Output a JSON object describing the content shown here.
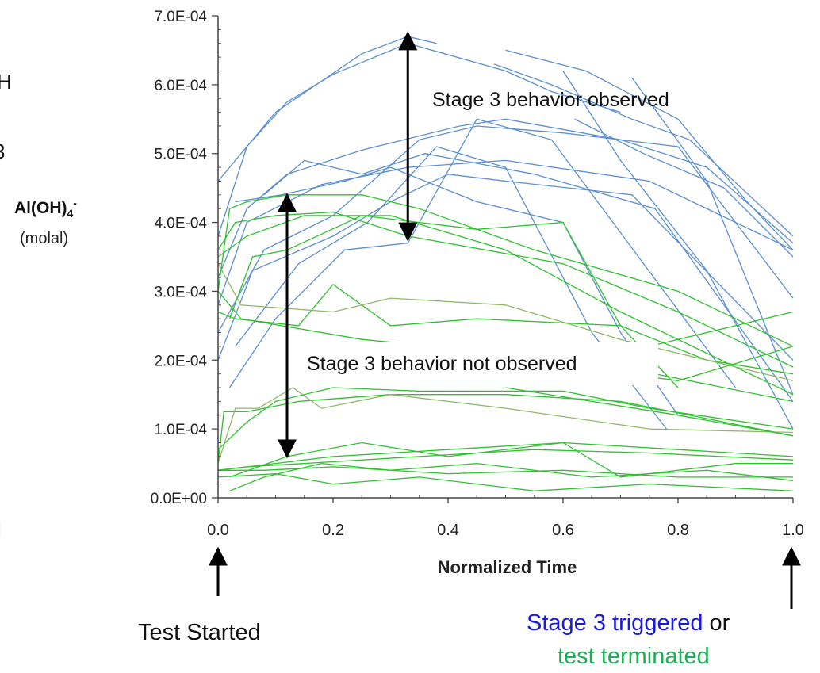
{
  "left_edge_fragments": [
    "H",
    "3",
    "l"
  ],
  "chart_data": {
    "type": "line",
    "xlabel": "Normalized Time",
    "ylabel": "Al(OH)4- (molal)",
    "ylabel_main": "Al(OH)",
    "ylabel_sub": "4",
    "ylabel_sup": "-",
    "ylabel_unit": "(molal)",
    "xlim": [
      0,
      1
    ],
    "ylim": [
      0,
      0.0007
    ],
    "x_ticks": [
      0.0,
      0.2,
      0.4,
      0.6,
      0.8,
      1.0
    ],
    "x_tick_labels": [
      "0.0",
      "0.2",
      "0.4",
      "0.6",
      "0.8",
      "1.0"
    ],
    "y_ticks": [
      0,
      0.0001,
      0.0002,
      0.0003,
      0.0004,
      0.0005,
      0.0006,
      0.0007
    ],
    "y_tick_labels": [
      "0.0E+00",
      "1.0E-04",
      "2.0E-04",
      "3.0E-04",
      "4.0E-04",
      "5.0E-04",
      "6.0E-04",
      "7.0E-04"
    ],
    "grid": false,
    "colors": {
      "stage3": "#5b8fd1",
      "no_stage3": "#2ec12e",
      "no_stage3_alt": "#8fb86a"
    },
    "series_blue": [
      [
        [
          0.0,
          0.00038
        ],
        [
          0.05,
          0.00051
        ],
        [
          0.12,
          0.000575
        ],
        [
          0.2,
          0.000615
        ],
        [
          0.33,
          0.00066
        ],
        [
          0.5,
          0.00062
        ],
        [
          0.58,
          0.00059
        ],
        [
          0.7,
          0.00056
        ]
      ],
      [
        [
          0.0,
          0.00046
        ],
        [
          0.1,
          0.00056
        ],
        [
          0.25,
          0.000645
        ],
        [
          0.33,
          0.00067
        ],
        [
          0.38,
          0.00066
        ]
      ],
      [
        [
          0.0,
          0.00032
        ],
        [
          0.05,
          0.00042
        ],
        [
          0.12,
          0.00047
        ],
        [
          0.25,
          0.000505
        ],
        [
          0.42,
          0.00054
        ],
        [
          0.5,
          0.00055
        ],
        [
          0.7,
          0.00052
        ],
        [
          0.85,
          0.00048
        ],
        [
          1.0,
          0.00037
        ]
      ],
      [
        [
          0.0,
          0.00028
        ],
        [
          0.05,
          0.0004
        ],
        [
          0.18,
          0.000455
        ],
        [
          0.33,
          0.00048
        ],
        [
          0.5,
          0.00049
        ],
        [
          0.75,
          0.00046
        ],
        [
          1.0,
          0.00036
        ]
      ],
      [
        [
          0.0,
          0.00024
        ],
        [
          0.08,
          0.00036
        ],
        [
          0.2,
          0.00041
        ],
        [
          0.35,
          0.00052
        ],
        [
          0.45,
          0.00054
        ],
        [
          0.6,
          0.00053
        ],
        [
          0.8,
          0.00051
        ],
        [
          1.0,
          0.00029
        ]
      ],
      [
        [
          0.0,
          0.0002
        ],
        [
          0.06,
          0.00033
        ],
        [
          0.2,
          0.00038
        ],
        [
          0.3,
          0.00043
        ],
        [
          0.4,
          0.00047
        ],
        [
          0.5,
          0.00046
        ],
        [
          0.72,
          0.00044
        ],
        [
          1.0,
          0.0002
        ]
      ],
      [
        [
          0.02,
          0.00016
        ],
        [
          0.1,
          0.00026
        ],
        [
          0.22,
          0.00036
        ],
        [
          0.33,
          0.00037
        ],
        [
          0.45,
          0.00055
        ],
        [
          0.58,
          0.00052
        ],
        [
          0.9,
          0.00016
        ]
      ],
      [
        [
          0.03,
          0.00022
        ],
        [
          0.14,
          0.00034
        ],
        [
          0.26,
          0.0004
        ],
        [
          0.38,
          0.00051
        ],
        [
          0.5,
          0.00048
        ],
        [
          0.65,
          0.00024
        ],
        [
          0.78,
          0.0001
        ]
      ],
      [
        [
          0.08,
          0.00044
        ],
        [
          0.15,
          0.00049
        ],
        [
          0.25,
          0.00047
        ],
        [
          0.36,
          0.0005
        ],
        [
          0.55,
          0.00047
        ],
        [
          0.76,
          0.00042
        ],
        [
          1.0,
          0.00014
        ]
      ],
      [
        [
          0.03,
          0.00043
        ],
        [
          0.11,
          0.00044
        ],
        [
          0.22,
          0.00046
        ],
        [
          0.3,
          0.00048
        ],
        [
          0.45,
          0.00043
        ],
        [
          0.6,
          0.0004
        ],
        [
          0.7,
          0.00024
        ],
        [
          0.8,
          0.00012
        ]
      ],
      [
        [
          0.48,
          0.00063
        ],
        [
          0.58,
          0.0006
        ],
        [
          0.72,
          0.00055
        ],
        [
          0.82,
          0.00052
        ],
        [
          1.0,
          0.00038
        ]
      ],
      [
        [
          0.5,
          0.00065
        ],
        [
          0.64,
          0.00062
        ],
        [
          0.8,
          0.00055
        ],
        [
          0.92,
          0.00043
        ],
        [
          1.0,
          0.00036
        ]
      ],
      [
        [
          0.62,
          0.00055
        ],
        [
          0.74,
          0.0005
        ],
        [
          0.88,
          0.00045
        ],
        [
          1.0,
          0.00035
        ]
      ],
      [
        [
          0.6,
          0.00062
        ],
        [
          0.7,
          0.00049
        ],
        [
          0.85,
          0.00033
        ],
        [
          1.0,
          0.0001
        ]
      ],
      [
        [
          0.72,
          0.00061
        ],
        [
          0.85,
          0.00046
        ],
        [
          1.0,
          0.00015
        ]
      ]
    ],
    "series_green": [
      [
        [
          0.0,
          0.0003
        ],
        [
          0.02,
          0.00042
        ],
        [
          0.05,
          0.00043
        ],
        [
          0.12,
          0.00044
        ],
        [
          0.25,
          0.00044
        ],
        [
          0.35,
          0.00042
        ],
        [
          0.55,
          0.00036
        ],
        [
          0.8,
          0.0003
        ],
        [
          1.0,
          0.00022
        ]
      ],
      [
        [
          0.0,
          0.00036
        ],
        [
          0.03,
          0.0004
        ],
        [
          0.1,
          0.00041
        ],
        [
          0.2,
          0.000415
        ],
        [
          0.33,
          0.00038
        ],
        [
          0.6,
          0.00034
        ],
        [
          0.8,
          0.00027
        ],
        [
          1.0,
          0.00019
        ]
      ],
      [
        [
          0.0,
          0.00035
        ],
        [
          0.05,
          0.00038
        ],
        [
          0.15,
          0.00041
        ],
        [
          0.3,
          0.00041
        ],
        [
          0.5,
          0.00036
        ],
        [
          0.7,
          0.00027
        ],
        [
          1.0,
          0.00015
        ]
      ],
      [
        [
          0.02,
          0.00026
        ],
        [
          0.06,
          0.00035
        ],
        [
          0.12,
          0.00036
        ],
        [
          0.25,
          0.00041
        ],
        [
          0.45,
          0.00039
        ],
        [
          0.6,
          0.0004
        ],
        [
          0.7,
          0.00025
        ],
        [
          0.8,
          0.00016
        ]
      ],
      [
        [
          0.0,
          0.00027
        ],
        [
          0.03,
          0.00026
        ],
        [
          0.14,
          0.00025
        ],
        [
          0.2,
          0.00031
        ],
        [
          0.3,
          0.00025
        ],
        [
          0.45,
          0.00026
        ],
        [
          0.7,
          0.00025
        ],
        [
          0.85,
          0.0002
        ],
        [
          1.0,
          0.00018
        ]
      ],
      [
        [
          0.0,
          0.00034
        ],
        [
          0.04,
          0.00028
        ],
        [
          0.2,
          0.00027
        ],
        [
          0.3,
          0.00029
        ],
        [
          0.5,
          0.00028
        ],
        [
          0.7,
          0.00023
        ],
        [
          1.0,
          0.00017
        ]
      ],
      [
        [
          0.0,
          0.0003
        ],
        [
          0.04,
          0.00026
        ],
        [
          0.25,
          0.00023
        ],
        [
          0.5,
          0.00021
        ],
        [
          0.7,
          0.00019
        ],
        [
          1.0,
          0.00014
        ]
      ],
      [
        [
          0.0,
          5e-05
        ],
        [
          0.01,
          0.000125
        ],
        [
          0.05,
          0.000125
        ],
        [
          0.08,
          0.00013
        ],
        [
          0.14,
          0.00014
        ],
        [
          0.3,
          0.00015
        ],
        [
          0.5,
          0.00015
        ],
        [
          0.7,
          0.00014
        ],
        [
          1.0,
          9e-05
        ]
      ],
      [
        [
          0.0,
          5e-05
        ],
        [
          0.03,
          0.00013
        ],
        [
          0.07,
          0.00013
        ],
        [
          0.13,
          0.00016
        ],
        [
          0.18,
          0.00013
        ],
        [
          0.3,
          0.00015
        ],
        [
          0.5,
          0.00013
        ],
        [
          0.75,
          0.0001
        ],
        [
          1.0,
          9.5e-05
        ]
      ],
      [
        [
          0.0,
          7e-05
        ],
        [
          0.05,
          0.00011
        ],
        [
          0.1,
          0.00014
        ],
        [
          0.2,
          0.00016
        ],
        [
          0.35,
          0.000155
        ],
        [
          0.6,
          0.000155
        ],
        [
          0.75,
          0.00013
        ],
        [
          1.0,
          0.0001
        ]
      ],
      [
        [
          0.0,
          4e-05
        ],
        [
          0.1,
          5e-05
        ],
        [
          0.2,
          6e-05
        ],
        [
          0.4,
          7e-05
        ],
        [
          0.6,
          8e-05
        ],
        [
          0.8,
          7e-05
        ],
        [
          1.0,
          6e-05
        ]
      ],
      [
        [
          0.0,
          4e-05
        ],
        [
          0.05,
          4.5e-05
        ],
        [
          0.15,
          5e-05
        ],
        [
          0.35,
          6e-05
        ],
        [
          0.55,
          7e-05
        ],
        [
          0.75,
          6.5e-05
        ],
        [
          1.0,
          5.5e-05
        ]
      ],
      [
        [
          0.0,
          4e-05
        ],
        [
          0.08,
          4e-05
        ],
        [
          0.2,
          4.5e-05
        ],
        [
          0.4,
          3.5e-05
        ],
        [
          0.6,
          4e-05
        ],
        [
          0.8,
          3e-05
        ],
        [
          1.0,
          3e-05
        ]
      ],
      [
        [
          0.0,
          3e-05
        ],
        [
          0.1,
          3.5e-05
        ],
        [
          0.2,
          2e-05
        ],
        [
          0.35,
          3e-05
        ],
        [
          0.55,
          1e-05
        ],
        [
          0.75,
          2e-05
        ],
        [
          1.0,
          1e-05
        ]
      ],
      [
        [
          0.02,
          3e-05
        ],
        [
          0.12,
          6e-05
        ],
        [
          0.25,
          8e-05
        ],
        [
          0.4,
          6e-05
        ],
        [
          0.6,
          8e-05
        ],
        [
          0.7,
          3e-05
        ],
        [
          0.9,
          5e-05
        ],
        [
          1.0,
          5e-05
        ]
      ],
      [
        [
          0.02,
          1e-05
        ],
        [
          0.08,
          3e-05
        ],
        [
          0.18,
          5e-05
        ],
        [
          0.3,
          4e-05
        ],
        [
          0.45,
          5e-05
        ],
        [
          0.65,
          3e-05
        ],
        [
          0.85,
          4e-05
        ],
        [
          1.0,
          2.5e-05
        ]
      ],
      [
        [
          0.5,
          0.00016
        ],
        [
          0.65,
          0.00014
        ],
        [
          0.8,
          0.00012
        ],
        [
          1.0,
          9e-05
        ]
      ],
      [
        [
          0.62,
          0.00019
        ],
        [
          0.8,
          0.00017
        ],
        [
          1.0,
          0.00022
        ]
      ],
      [
        [
          0.55,
          0.00021
        ],
        [
          0.75,
          0.00022
        ],
        [
          1.0,
          0.00027
        ]
      ]
    ],
    "annotations": {
      "observed": "Stage 3 behavior  observed",
      "not_observed": "Stage 3 behavior  not observed"
    },
    "arrows": {
      "observed": {
        "x": 0.33,
        "y_top": 0.000675,
        "y_bottom": 0.000375
      },
      "not_observed": {
        "x": 0.12,
        "y_top": 0.00044,
        "y_bottom": 6e-05
      }
    }
  },
  "bottom_labels": {
    "test_started": "Test  Started",
    "stage3_triggered": "Stage 3 triggered",
    "or": "or",
    "test_terminated": "test  terminated"
  }
}
